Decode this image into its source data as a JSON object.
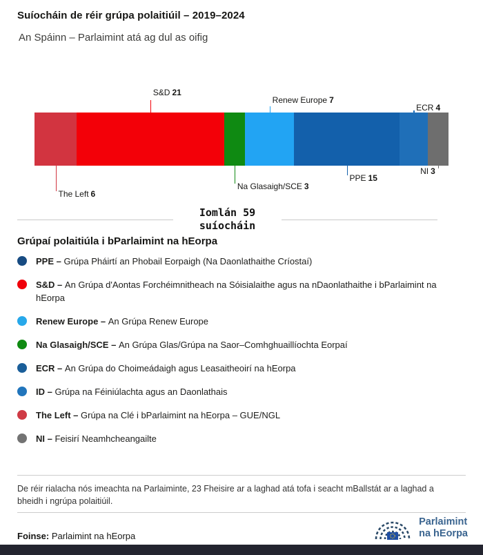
{
  "header": {
    "title": "Suíocháin de réir grúpa polaitiúil – 2019–2024",
    "subtitle": "An Spáinn – Parlaimint atá ag dul as oifig"
  },
  "chart_data": {
    "type": "bar",
    "variant": "horizontal-stacked-single-bar",
    "title": "Suíocháin de réir grúpa polaitiúil – 2019–2024",
    "subtitle": "An Spáinn – Parlaimint atá ag dul as oifig",
    "total": 59,
    "total_label_line1": "Iomlán 59",
    "total_label_line2": "suíocháin",
    "legend_position": "below",
    "segments": [
      {
        "name": "The Left",
        "value": 6,
        "color": "#d23440",
        "label_side": "bottom",
        "label_tier": 3,
        "label_align": "left"
      },
      {
        "name": "S&D",
        "value": 21,
        "color": "#f30008",
        "label_side": "top",
        "label_tier": 0,
        "label_align": "left"
      },
      {
        "name": "Na Glasaigh/SCE",
        "value": 3,
        "color": "#0f8a12",
        "label_side": "bottom",
        "label_tier": 2,
        "label_align": "left"
      },
      {
        "name": "Renew Europe",
        "value": 7,
        "color": "#22a4f3",
        "label_side": "top",
        "label_tier": 1,
        "label_align": "left"
      },
      {
        "name": "PPE",
        "value": 15,
        "color": "#1360ab",
        "label_side": "bottom",
        "label_tier": 1,
        "label_align": "left"
      },
      {
        "name": "ECR",
        "value": 4,
        "color": "#1f6fb8",
        "label_side": "top",
        "label_tier": 2,
        "label_align": "left"
      },
      {
        "name": "NI",
        "value": 3,
        "color": "#6e6e6e",
        "label_side": "bottom",
        "label_tier": 0,
        "label_align": "right"
      }
    ]
  },
  "legend": {
    "heading": "Grúpaí polaitiúla i bParlaimint na hEorpa",
    "items": [
      {
        "name": "PPE –",
        "description": "Grúpa Pháirtí an Phobail Eorpaigh (Na Daonlathaithe Críostaí)",
        "color": "#174b82"
      },
      {
        "name": "S&D –",
        "description": "An Grúpa d'Aontas Forchéimnitheach na Sóisialaithe agus na nDaonlathaithe i bParlaimint na hEorpa",
        "color": "#f0000a"
      },
      {
        "name": "Renew Europe –",
        "description": "An Grúpa Renew Europe",
        "color": "#27a8ea"
      },
      {
        "name": "Na Glasaigh/SCE –",
        "description": "An Grúpa Glas/Grúpa na Saor–Comhghuaillíochta Eorpaí",
        "color": "#0f8a12"
      },
      {
        "name": "ECR –",
        "description": "An Grúpa do Choimeádaigh agus Leasaitheoirí na hEorpa",
        "color": "#1a5e99"
      },
      {
        "name": "ID –",
        "description": "Grúpa na Féiniúlachta agus an Daonlathais",
        "color": "#2175bc"
      },
      {
        "name": "The Left –",
        "description": "Grúpa na Clé i bParlaimint na hEorpa – GUE/NGL",
        "color": "#cf3b45"
      },
      {
        "name": "NI –",
        "description": "Feisirí Neamhcheangailte",
        "color": "#737373"
      }
    ]
  },
  "footnote": "De réir rialacha nós imeachta na Parlaiminte, 23 Fheisire ar a laghad atá tofa i seacht mBallstát ar a laghad a bheidh i ngrúpa polaitiúil.",
  "footer": {
    "source_label": "Foinse:",
    "source_value": "Parlaimint na hEorpa",
    "logo_line1": "Parlaimint",
    "logo_line2": "na hEorpa"
  },
  "colors": {
    "divider": "#cccccc",
    "bottom_strip": "#23242f",
    "logo_blue": "#3a648f",
    "eu_flag_blue": "#1f4fa5",
    "eu_flag_stars": "#ffd617"
  }
}
